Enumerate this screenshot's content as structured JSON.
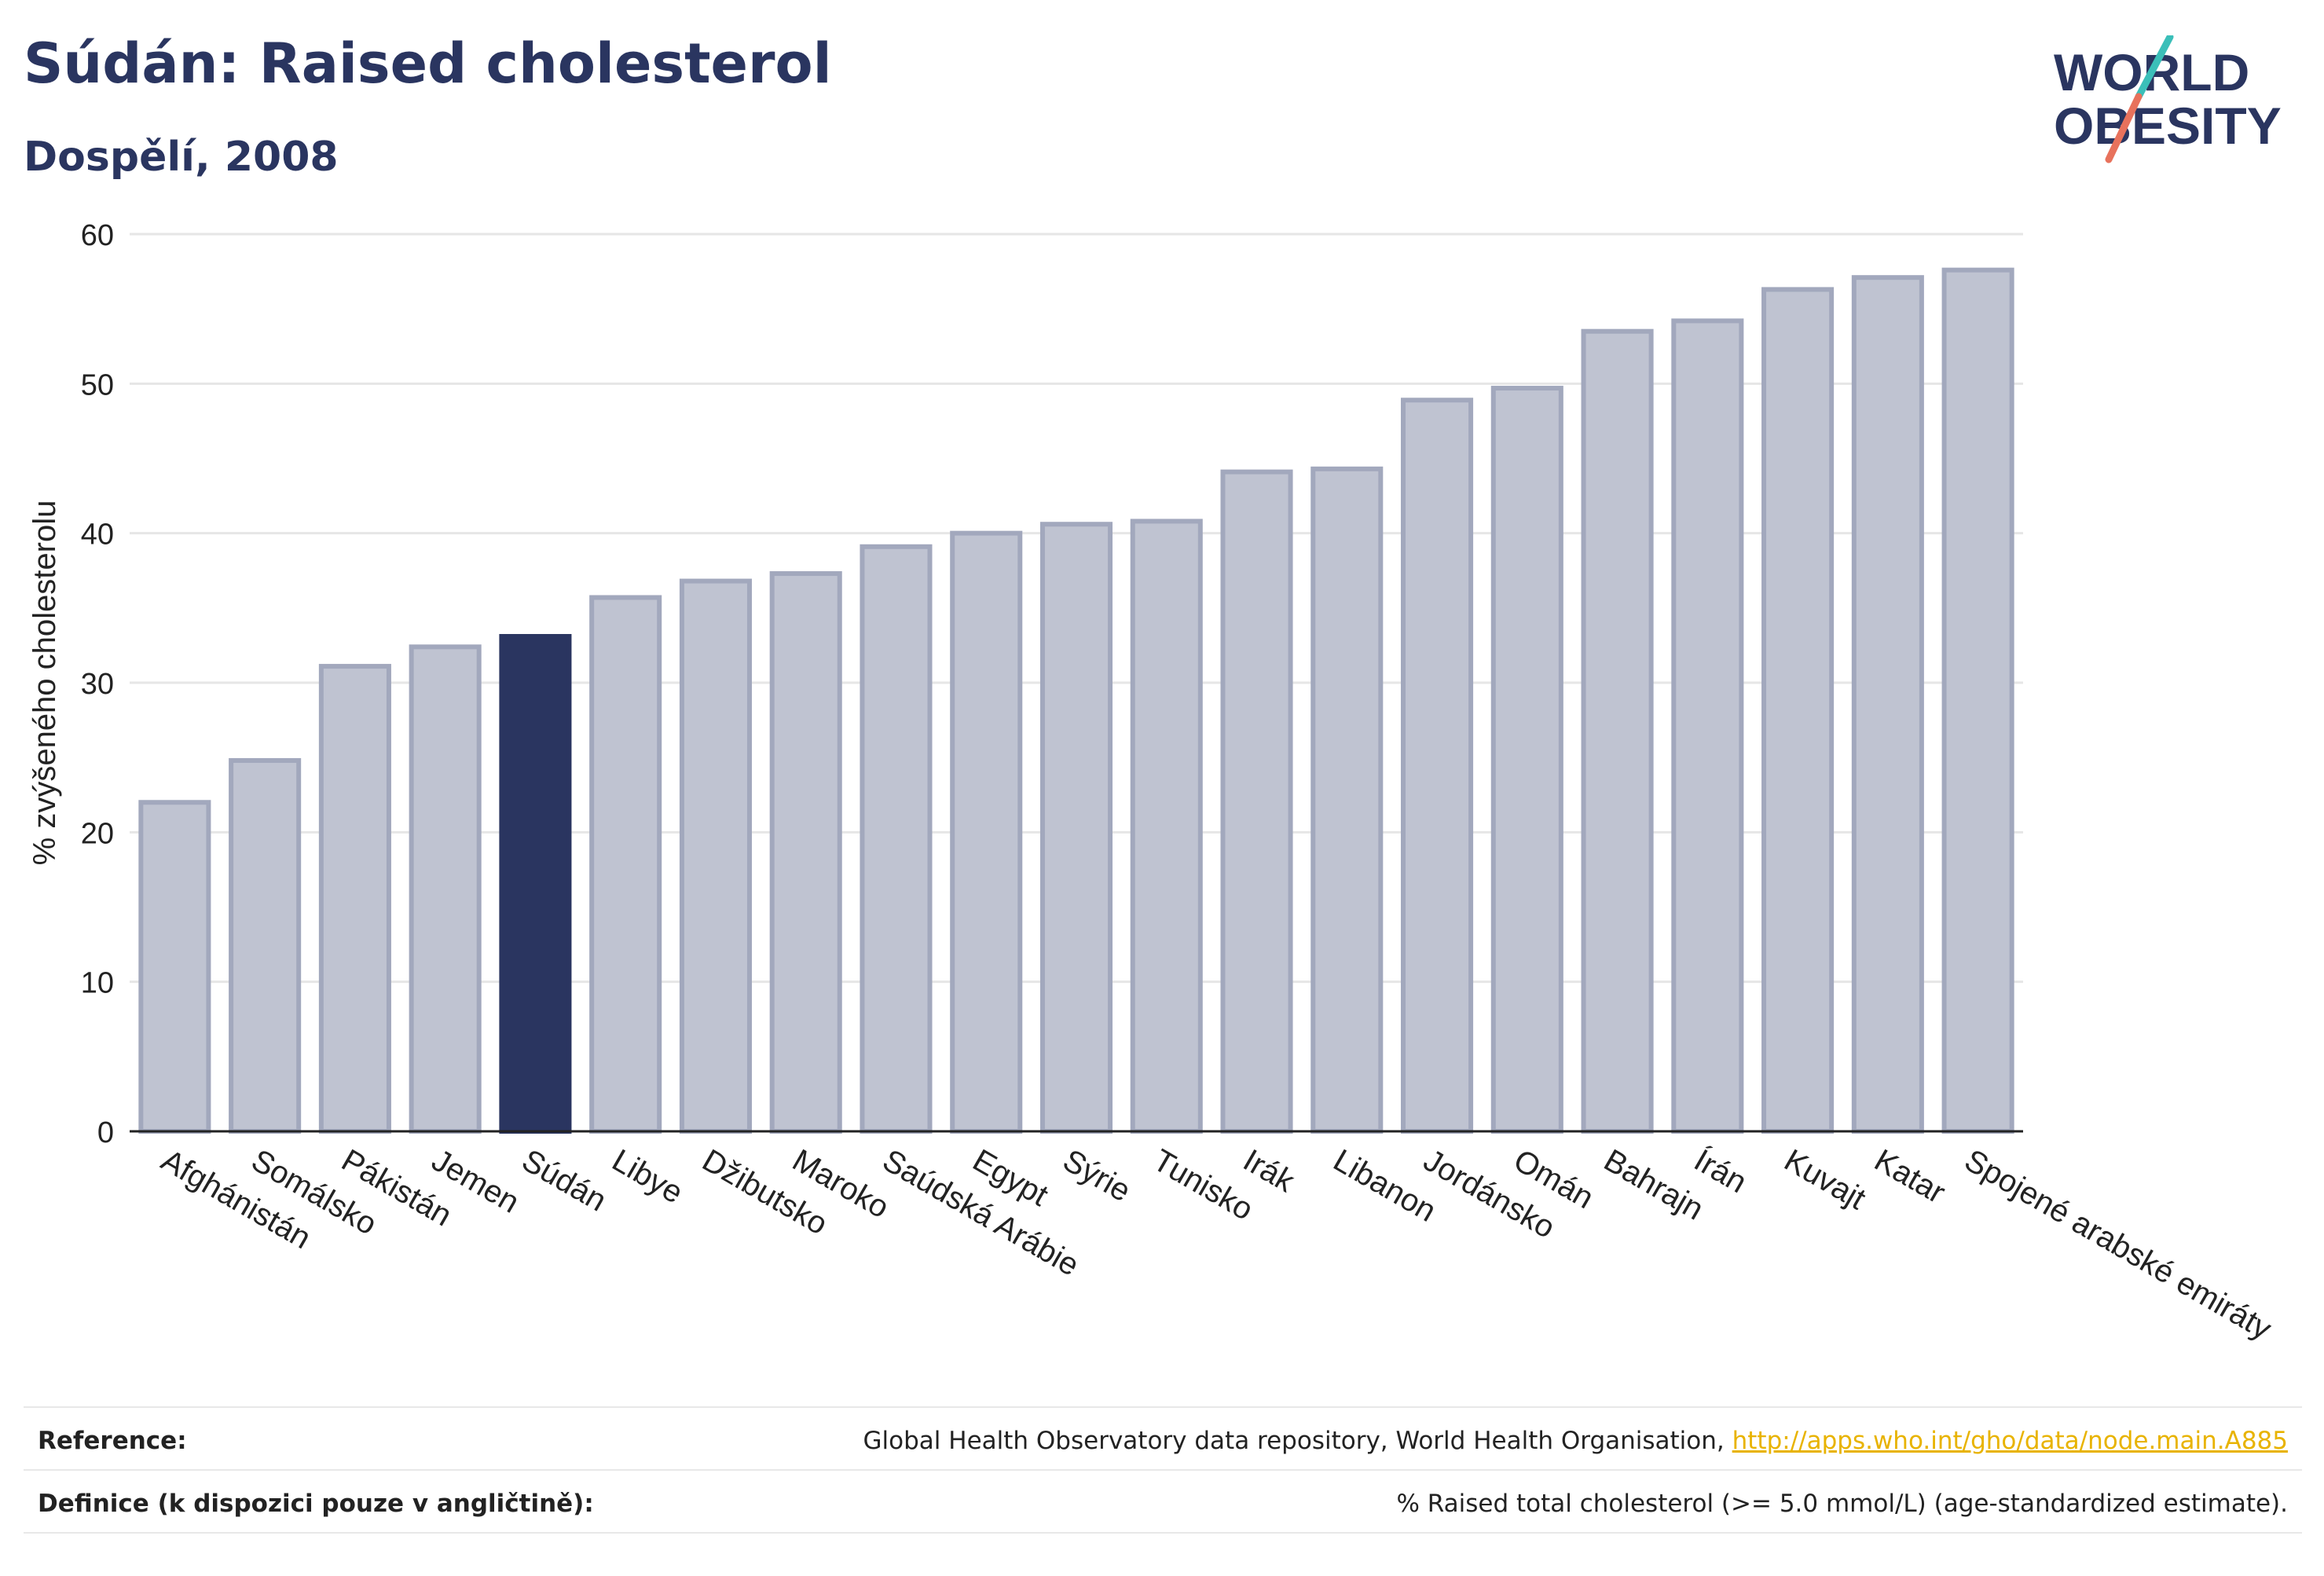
{
  "header": {
    "title": "Súdán: Raised cholesterol",
    "subtitle": "Dospělí, 2008"
  },
  "logo": {
    "line1": "WORLD",
    "line2": "OBESITY",
    "colors": {
      "text": "#2a3560",
      "slash_top": "#3bbfb9",
      "slash_bottom": "#e8725c"
    }
  },
  "colors": {
    "highlight": "#2a3560",
    "bar_fill": "#bfc3d1",
    "bar_stroke": "#a2a8bd",
    "grid": "#e6e6e6",
    "axis": "#222222"
  },
  "chart_data": {
    "type": "bar",
    "ylabel": "% zvýšeného cholesterolu",
    "ylim": [
      0,
      60
    ],
    "yticks": [
      0,
      10,
      20,
      30,
      40,
      50,
      60
    ],
    "grid": true,
    "highlight": "Súdán",
    "categories": [
      "Afghánistán",
      "Somálsko",
      "Pákistán",
      "Jemen",
      "Súdán",
      "Libye",
      "Džibutsko",
      "Maroko",
      "Saúdská Arábie",
      "Egypt",
      "Sýrie",
      "Tunisko",
      "Irák",
      "Libanon",
      "Jordánsko",
      "Omán",
      "Bahrajn",
      "Írán",
      "Kuvajt",
      "Katar",
      "Spojené arabské emiráty"
    ],
    "values": [
      22.0,
      24.8,
      31.1,
      32.4,
      33.1,
      35.7,
      36.8,
      37.3,
      39.1,
      40.0,
      40.6,
      40.8,
      44.1,
      44.3,
      48.9,
      49.7,
      53.5,
      54.2,
      56.3,
      57.1,
      57.6
    ]
  },
  "footer": {
    "reference_label": "Reference:",
    "reference_text": "Global Health Observatory data repository, World Health Organisation, ",
    "reference_link": "http://apps.who.int/gho/data/node.main.A885",
    "definition_label": "Definice (k dispozici pouze v angličtině):",
    "definition_text": "% Raised total cholesterol (>= 5.0 mmol/L) (age-standardized estimate)."
  }
}
